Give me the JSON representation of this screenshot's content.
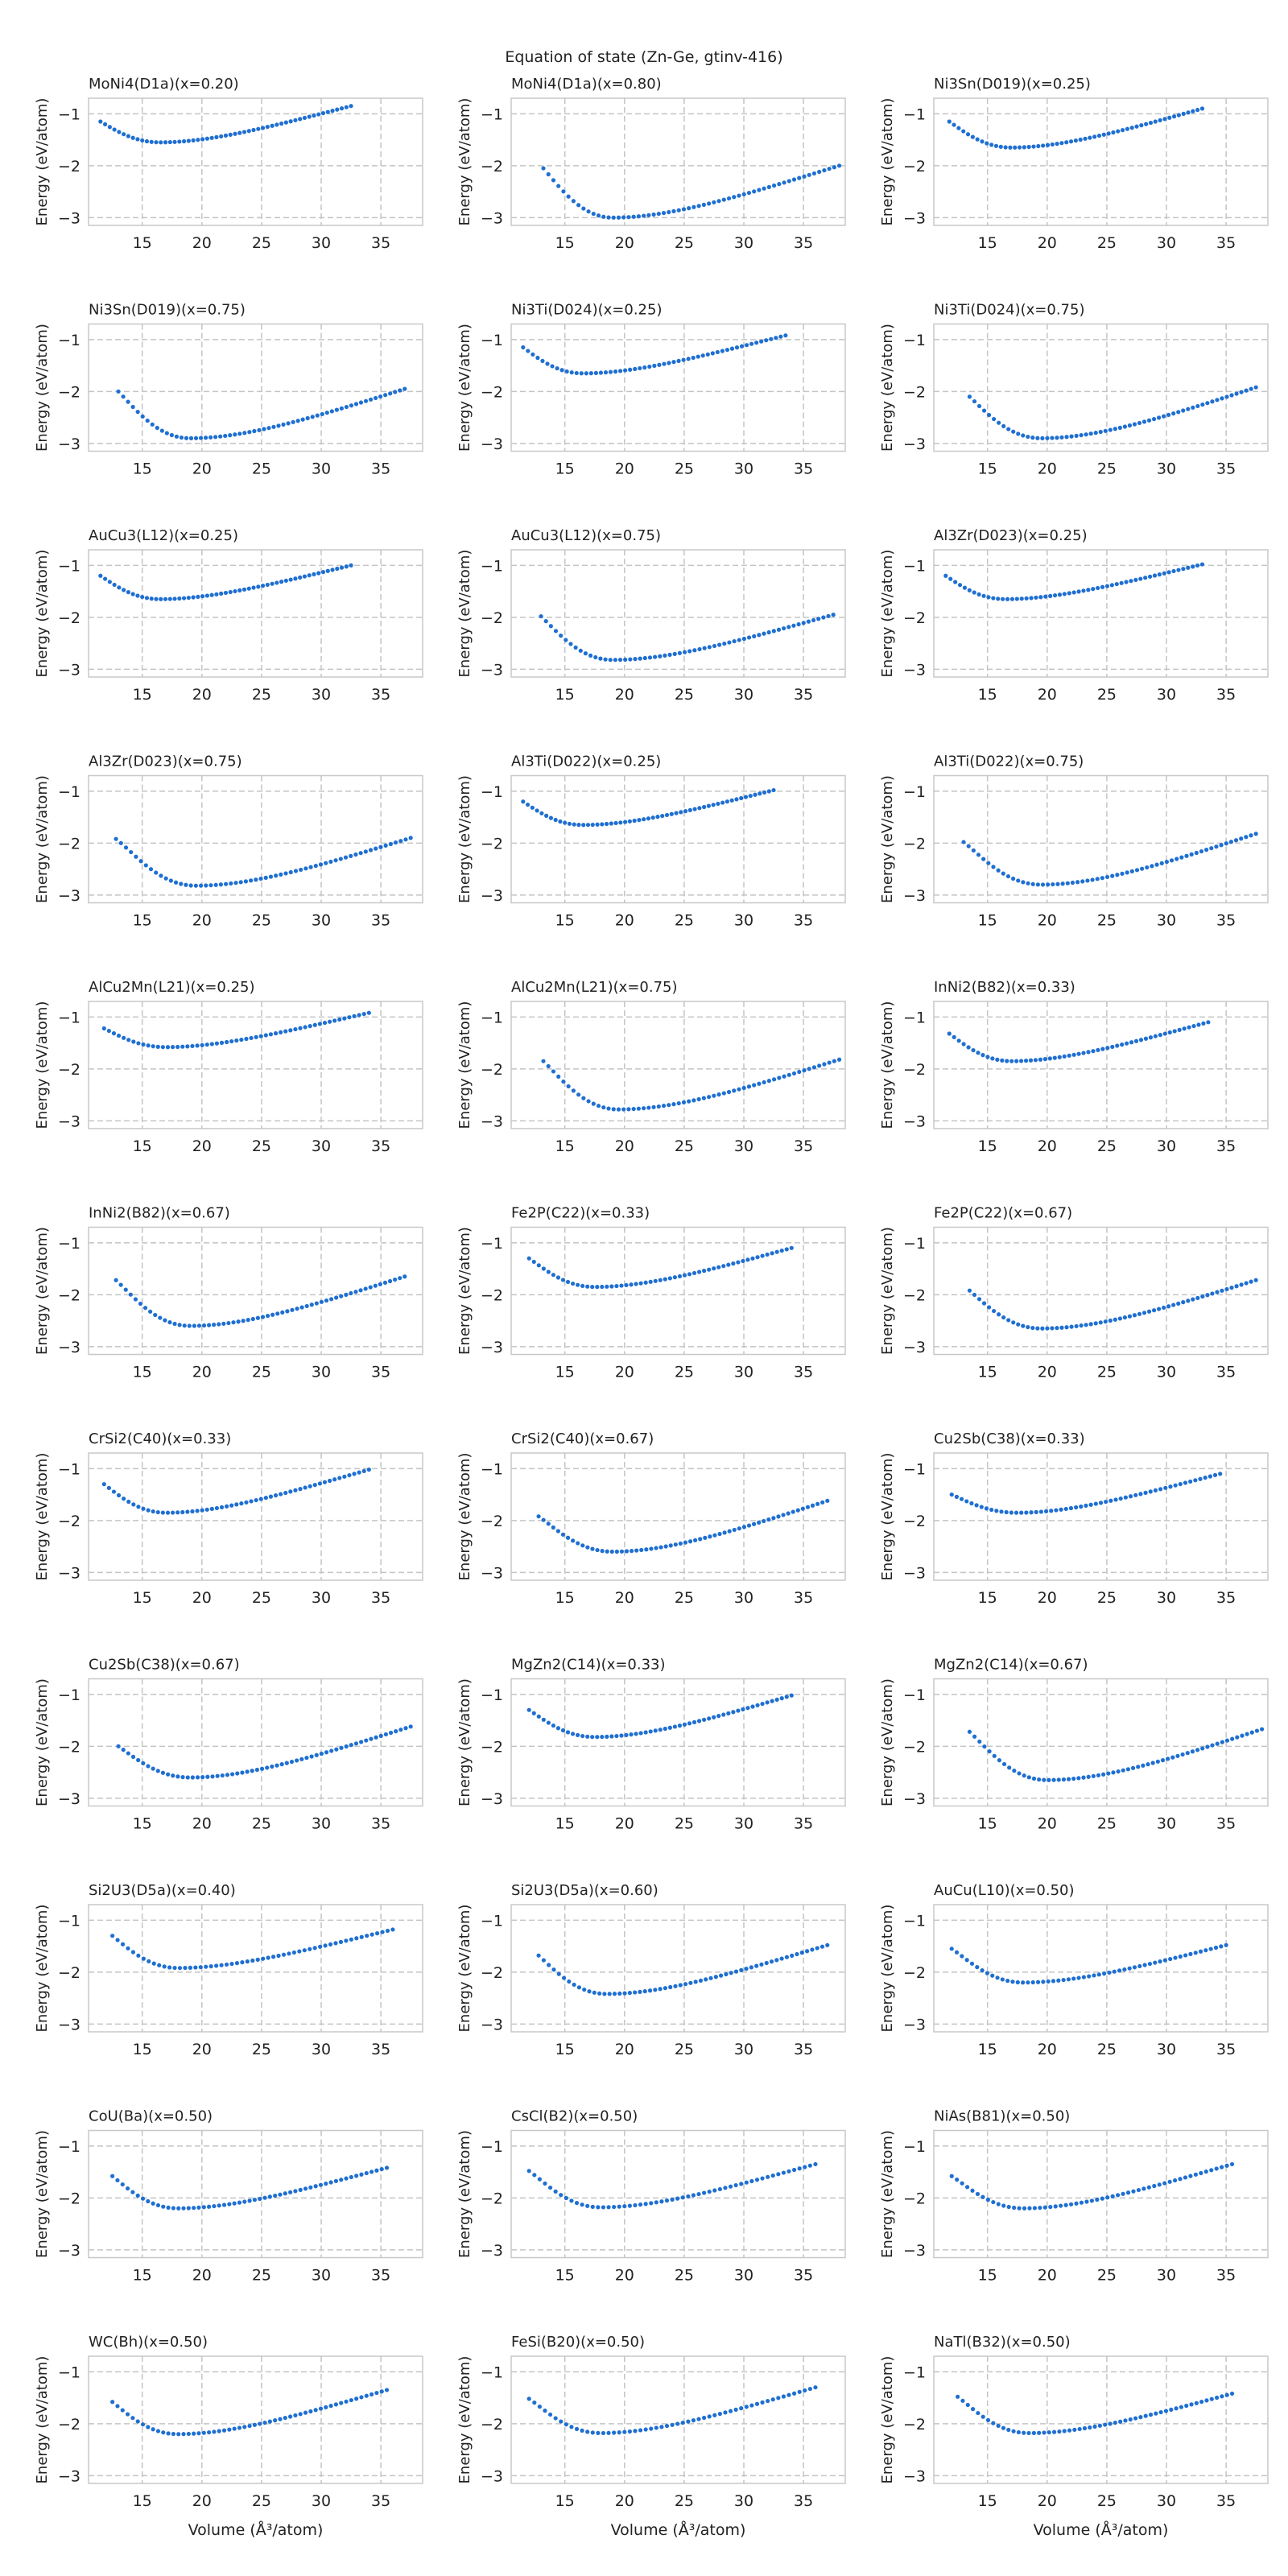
{
  "figure": {
    "suptitle": "Equation of state (Zn-Ge, gtinv-416)",
    "xlabel": "Volume (Å$^3$/atom)",
    "xlabel_display": "Volume (Å³/atom)",
    "ylabel": "Energy (eV/atom)",
    "xticks": [
      15,
      20,
      25,
      30,
      35
    ],
    "yticks": [
      -1,
      -2,
      -3
    ],
    "xlim": [
      10.5,
      38.5
    ],
    "ylim": [
      -3.15,
      -0.7
    ],
    "marker_color": "#1f6fd1",
    "grid": true
  },
  "chart_data": [
    {
      "type": "scatter",
      "title": "MoNi4(D1a)(x=0.20)",
      "v0": 16.5,
      "e0": -1.55,
      "vmin": 11.5,
      "vmax": 32.5,
      "n": 55,
      "e_start": -1.15,
      "e_end": -0.85
    },
    {
      "type": "scatter",
      "title": "MoNi4(D1a)(x=0.80)",
      "v0": 19.0,
      "e0": -3.0,
      "vmin": 13.2,
      "vmax": 38.0,
      "n": 60,
      "e_start": -2.05,
      "e_end": -2.0
    },
    {
      "type": "scatter",
      "title": "Ni3Sn(D019)(x=0.25)",
      "v0": 17.0,
      "e0": -1.65,
      "vmin": 11.8,
      "vmax": 33.0,
      "n": 55,
      "e_start": -1.15,
      "e_end": -0.9
    },
    {
      "type": "scatter",
      "title": "Ni3Sn(D019)(x=0.75)",
      "v0": 19.0,
      "e0": -2.9,
      "vmin": 13.0,
      "vmax": 37.0,
      "n": 60,
      "e_start": -2.0,
      "e_end": -1.95
    },
    {
      "type": "scatter",
      "title": "Ni3Ti(D024)(x=0.25)",
      "v0": 16.5,
      "e0": -1.65,
      "vmin": 11.5,
      "vmax": 33.5,
      "n": 55,
      "e_start": -1.15,
      "e_end": -0.92
    },
    {
      "type": "scatter",
      "title": "Ni3Ti(D024)(x=0.75)",
      "v0": 19.5,
      "e0": -2.9,
      "vmin": 13.5,
      "vmax": 37.5,
      "n": 60,
      "e_start": -2.1,
      "e_end": -1.92
    },
    {
      "type": "scatter",
      "title": "AuCu3(L12)(x=0.25)",
      "v0": 16.5,
      "e0": -1.65,
      "vmin": 11.5,
      "vmax": 32.5,
      "n": 55,
      "e_start": -1.2,
      "e_end": -1.0
    },
    {
      "type": "scatter",
      "title": "AuCu3(L12)(x=0.75)",
      "v0": 19.0,
      "e0": -2.82,
      "vmin": 13.0,
      "vmax": 37.5,
      "n": 60,
      "e_start": -1.98,
      "e_end": -1.95
    },
    {
      "type": "scatter",
      "title": "Al3Zr(D023)(x=0.25)",
      "v0": 16.5,
      "e0": -1.65,
      "vmin": 11.5,
      "vmax": 33.0,
      "n": 55,
      "e_start": -1.2,
      "e_end": -0.98
    },
    {
      "type": "scatter",
      "title": "Al3Zr(D023)(x=0.75)",
      "v0": 19.5,
      "e0": -2.82,
      "vmin": 12.8,
      "vmax": 37.5,
      "n": 60,
      "e_start": -1.92,
      "e_end": -1.9
    },
    {
      "type": "scatter",
      "title": "Al3Ti(D022)(x=0.25)",
      "v0": 16.5,
      "e0": -1.65,
      "vmin": 11.5,
      "vmax": 32.5,
      "n": 55,
      "e_start": -1.2,
      "e_end": -0.98
    },
    {
      "type": "scatter",
      "title": "Al3Ti(D022)(x=0.75)",
      "v0": 19.5,
      "e0": -2.8,
      "vmin": 13.0,
      "vmax": 37.5,
      "n": 60,
      "e_start": -1.98,
      "e_end": -1.82
    },
    {
      "type": "scatter",
      "title": "AlCu2Mn(L21)(x=0.25)",
      "v0": 17.0,
      "e0": -1.58,
      "vmin": 11.8,
      "vmax": 34.0,
      "n": 55,
      "e_start": -1.22,
      "e_end": -0.92
    },
    {
      "type": "scatter",
      "title": "AlCu2Mn(L21)(x=0.75)",
      "v0": 19.5,
      "e0": -2.78,
      "vmin": 13.2,
      "vmax": 38.0,
      "n": 60,
      "e_start": -1.85,
      "e_end": -1.82
    },
    {
      "type": "scatter",
      "title": "InNi2(B82)(x=0.33)",
      "v0": 17.0,
      "e0": -1.85,
      "vmin": 11.8,
      "vmax": 33.5,
      "n": 55,
      "e_start": -1.32,
      "e_end": -1.1
    },
    {
      "type": "scatter",
      "title": "InNi2(B82)(x=0.67)",
      "v0": 19.0,
      "e0": -2.6,
      "vmin": 12.8,
      "vmax": 37.0,
      "n": 60,
      "e_start": -1.72,
      "e_end": -1.65
    },
    {
      "type": "scatter",
      "title": "Fe2P(C22)(x=0.33)",
      "v0": 17.5,
      "e0": -1.85,
      "vmin": 12.0,
      "vmax": 34.0,
      "n": 55,
      "e_start": -1.3,
      "e_end": -1.1
    },
    {
      "type": "scatter",
      "title": "Fe2P(C22)(x=0.67)",
      "v0": 19.5,
      "e0": -2.65,
      "vmin": 13.5,
      "vmax": 37.5,
      "n": 60,
      "e_start": -1.92,
      "e_end": -1.72
    },
    {
      "type": "scatter",
      "title": "CrSi2(C40)(x=0.33)",
      "v0": 17.0,
      "e0": -1.85,
      "vmin": 11.8,
      "vmax": 34.0,
      "n": 55,
      "e_start": -1.3,
      "e_end": -1.02
    },
    {
      "type": "scatter",
      "title": "CrSi2(C40)(x=0.67)",
      "v0": 19.0,
      "e0": -2.6,
      "vmin": 12.8,
      "vmax": 37.0,
      "n": 60,
      "e_start": -1.92,
      "e_end": -1.62
    },
    {
      "type": "scatter",
      "title": "Cu2Sb(C38)(x=0.33)",
      "v0": 17.5,
      "e0": -1.85,
      "vmin": 12.0,
      "vmax": 34.5,
      "n": 55,
      "e_start": -1.5,
      "e_end": -1.1
    },
    {
      "type": "scatter",
      "title": "Cu2Sb(C38)(x=0.67)",
      "v0": 19.0,
      "e0": -2.6,
      "vmin": 13.0,
      "vmax": 37.5,
      "n": 60,
      "e_start": -2.0,
      "e_end": -1.62
    },
    {
      "type": "scatter",
      "title": "MgZn2(C14)(x=0.33)",
      "v0": 17.5,
      "e0": -1.82,
      "vmin": 12.0,
      "vmax": 34.0,
      "n": 55,
      "e_start": -1.3,
      "e_end": -1.02
    },
    {
      "type": "scatter",
      "title": "MgZn2(C14)(x=0.67)",
      "v0": 20.0,
      "e0": -2.65,
      "vmin": 13.5,
      "vmax": 38.0,
      "n": 60,
      "e_start": -1.72,
      "e_end": -1.67
    },
    {
      "type": "scatter",
      "title": "Si2U3(D5a)(x=0.40)",
      "v0": 18.0,
      "e0": -1.92,
      "vmin": 12.5,
      "vmax": 36.0,
      "n": 55,
      "e_start": -1.3,
      "e_end": -1.18
    },
    {
      "type": "scatter",
      "title": "Si2U3(D5a)(x=0.60)",
      "v0": 18.5,
      "e0": -2.42,
      "vmin": 12.8,
      "vmax": 37.0,
      "n": 58,
      "e_start": -1.68,
      "e_end": -1.48
    },
    {
      "type": "scatter",
      "title": "AuCu(L10)(x=0.50)",
      "v0": 18.0,
      "e0": -2.2,
      "vmin": 12.0,
      "vmax": 35.0,
      "n": 55,
      "e_start": -1.55,
      "e_end": -1.48
    },
    {
      "type": "scatter",
      "title": "CoU(Ba)(x=0.50)",
      "v0": 18.0,
      "e0": -2.2,
      "vmin": 12.5,
      "vmax": 35.5,
      "n": 55,
      "e_start": -1.58,
      "e_end": -1.42
    },
    {
      "type": "scatter",
      "title": "CsCl(B2)(x=0.50)",
      "v0": 18.0,
      "e0": -2.18,
      "vmin": 12.0,
      "vmax": 36.0,
      "n": 55,
      "e_start": -1.48,
      "e_end": -1.35
    },
    {
      "type": "scatter",
      "title": "NiAs(B81)(x=0.50)",
      "v0": 18.0,
      "e0": -2.2,
      "vmin": 12.0,
      "vmax": 35.5,
      "n": 55,
      "e_start": -1.58,
      "e_end": -1.35
    },
    {
      "type": "scatter",
      "title": "WC(Bh)(x=0.50)",
      "v0": 18.0,
      "e0": -2.2,
      "vmin": 12.5,
      "vmax": 35.5,
      "n": 55,
      "e_start": -1.58,
      "e_end": -1.35
    },
    {
      "type": "scatter",
      "title": "FeSi(B20)(x=0.50)",
      "v0": 18.0,
      "e0": -2.18,
      "vmin": 12.0,
      "vmax": 36.0,
      "n": 55,
      "e_start": -1.52,
      "e_end": -1.3
    },
    {
      "type": "scatter",
      "title": "NaTl(B32)(x=0.50)",
      "v0": 18.5,
      "e0": -2.18,
      "vmin": 12.5,
      "vmax": 35.5,
      "n": 55,
      "e_start": -1.48,
      "e_end": -1.42
    }
  ]
}
